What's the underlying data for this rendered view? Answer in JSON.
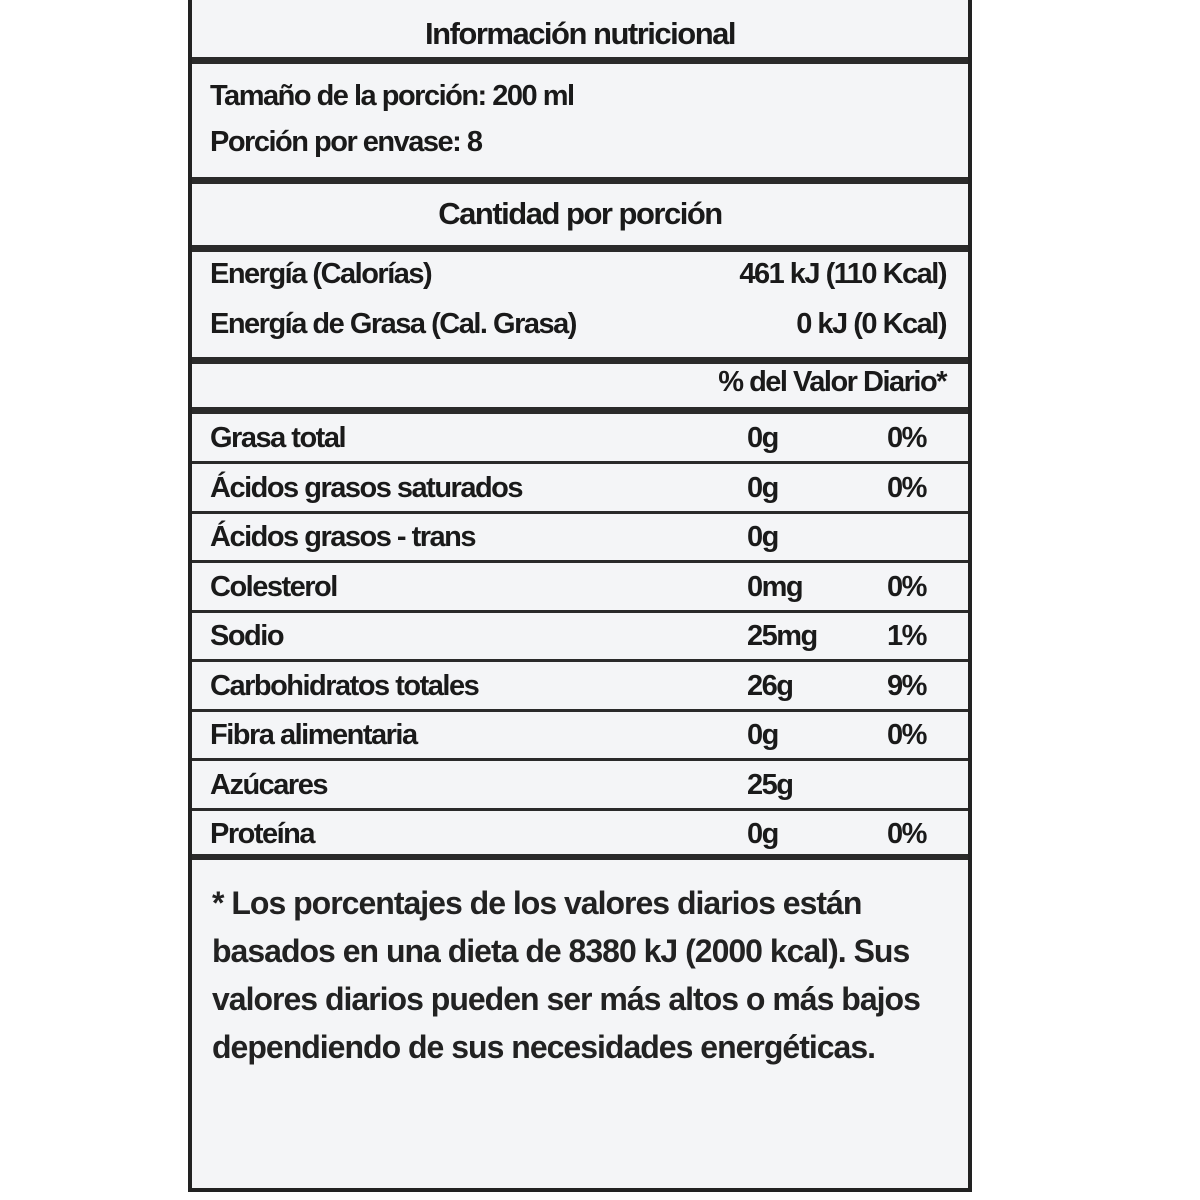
{
  "title": "Información nutricional",
  "serving": {
    "size": "Tamaño de la porción: 200 ml",
    "per_container": "Porción por envase: 8"
  },
  "amount_header": "Cantidad por porción",
  "energy": [
    {
      "label": "Energía (Calorías)",
      "value": "461 kJ (110 Kcal)"
    },
    {
      "label": "Energía de Grasa (Cal. Grasa)",
      "value": "0 kJ (0 Kcal)"
    }
  ],
  "dv_header": "% del Valor Diario*",
  "nutrients": [
    {
      "name": "Grasa total",
      "amount": "0g",
      "dv": "0%"
    },
    {
      "name": "Ácidos grasos saturados",
      "amount": "0g",
      "dv": "0%"
    },
    {
      "name": "Ácidos grasos - trans",
      "amount": "0g",
      "dv": ""
    },
    {
      "name": "Colesterol",
      "amount": "0mg",
      "dv": "0%"
    },
    {
      "name": "Sodio",
      "amount": "25mg",
      "dv": "1%"
    },
    {
      "name": "Carbohidratos totales",
      "amount": "26g",
      "dv": "9%"
    },
    {
      "name": "Fibra alimentaria",
      "amount": "0g",
      "dv": "0%"
    },
    {
      "name": "Azúcares",
      "amount": "25g",
      "dv": ""
    },
    {
      "name": "Proteína",
      "amount": "0g",
      "dv": "0%"
    }
  ],
  "footnote": "* Los porcentajes de los valores diarios están basados en una dieta de 8380 kJ (2000 kcal). Sus valores diarios pueden ser más altos o más bajos dependiendo de sus necesidades energéticas."
}
